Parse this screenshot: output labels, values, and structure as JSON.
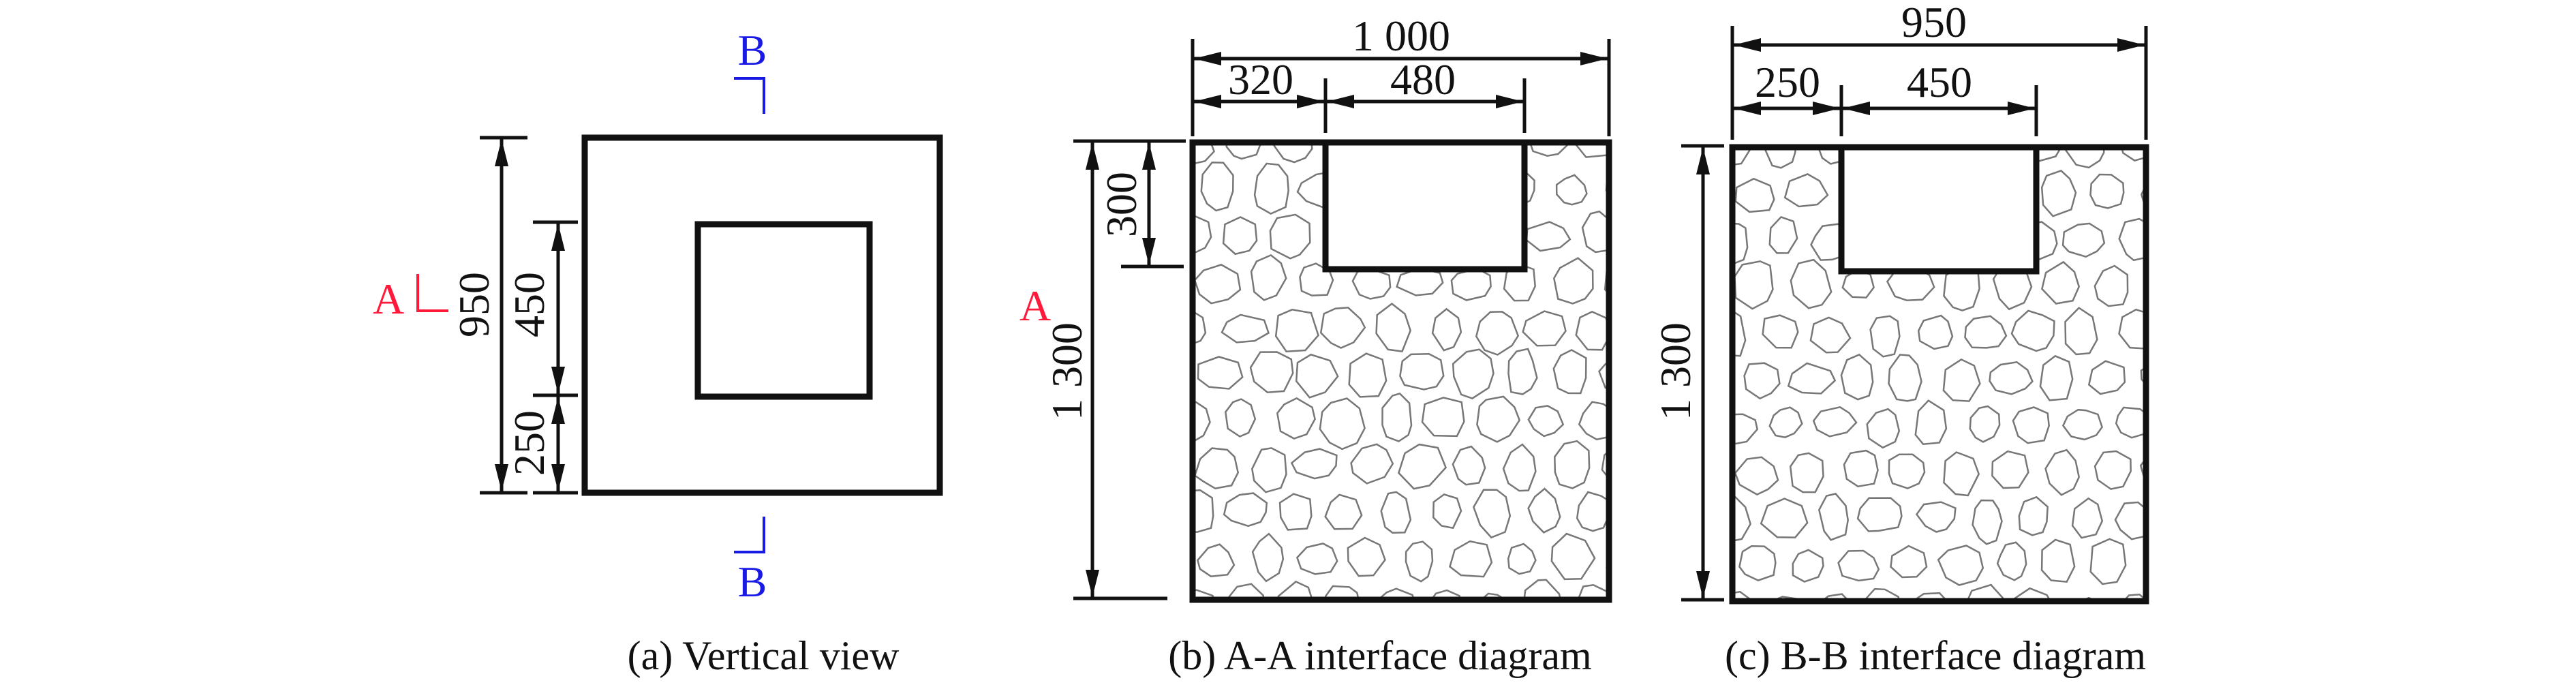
{
  "colors": {
    "section_a": "#ff1a3c",
    "section_b": "#1a1ae6",
    "line": "#111111",
    "stone": "#777777"
  },
  "vertical_view": {
    "caption": "(a) Vertical view",
    "dim_total": "950",
    "dim_hole": "450",
    "dim_offset": "250",
    "section_a_label": "A",
    "section_b_top_label": "B",
    "section_b_bottom_label": "B"
  },
  "section_aa": {
    "caption": "(b) A-A interface diagram",
    "dim_width": "1 000",
    "dim_left": "320",
    "dim_hole": "480",
    "dim_hole_depth": "300",
    "dim_height": "1 300",
    "section_label": "A"
  },
  "section_bb": {
    "caption": "(c) B-B interface diagram",
    "dim_width": "950",
    "dim_left": "250",
    "dim_hole": "450",
    "dim_height": "1 300"
  }
}
